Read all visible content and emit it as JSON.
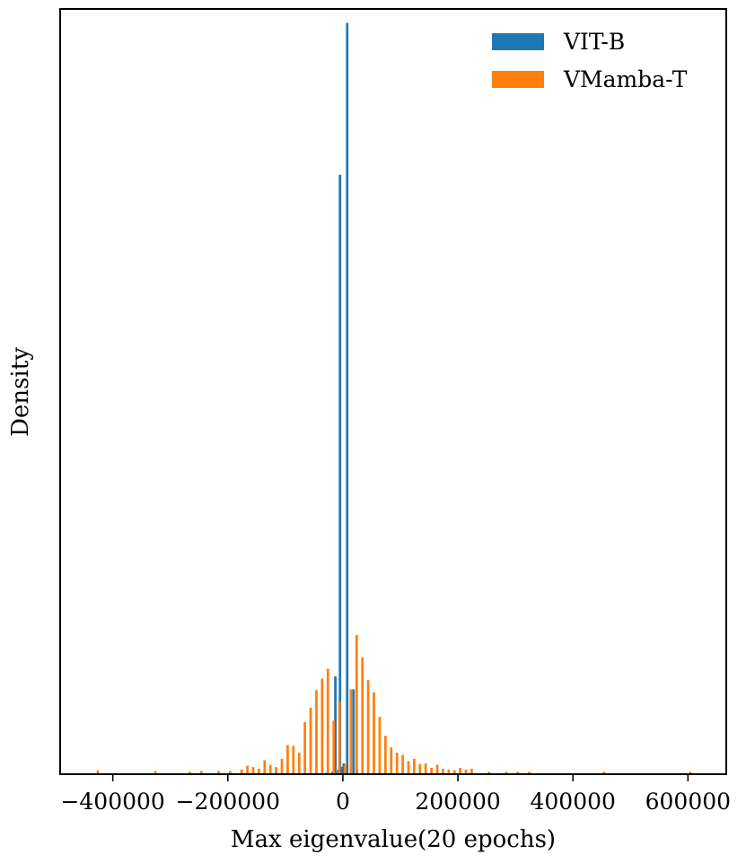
{
  "chart_data": {
    "type": "bar",
    "title": "",
    "xlabel": "Max eigenvalue(20 epochs)",
    "ylabel": "Density",
    "xlim": [
      -490000,
      665000
    ],
    "ylim": [
      0,
      1.0
    ],
    "x_ticks": [
      -400000,
      -200000,
      0,
      200000,
      400000,
      600000
    ],
    "x_tick_labels": [
      "−400000",
      "−200000",
      "0",
      "200000",
      "400000",
      "600000"
    ],
    "y_ticks_visible": false,
    "grid": false,
    "legend_position": "top-right",
    "bar_width": 4300,
    "series": [
      {
        "name": "VIT-B",
        "color": "#1f77b4",
        "bins": [
          {
            "x": -28000,
            "y": 0.001
          },
          {
            "x": -18000,
            "y": 0.002
          },
          {
            "x": -8000,
            "y": 0.0045
          },
          {
            "x": -1500,
            "y": 0.0085
          },
          {
            "x": 1500,
            "y": 0.013
          },
          {
            "x": -13000,
            "y": 0.127
          },
          {
            "x": -5000,
            "y": 0.784
          },
          {
            "x": 7500,
            "y": 0.983
          },
          {
            "x": 18500,
            "y": 0.11
          },
          {
            "x": 24500,
            "y": 0.005
          }
        ]
      },
      {
        "name": "VMamba-T",
        "color": "#ff7f0e",
        "bins": [
          {
            "x": -426000,
            "y": 0.004
          },
          {
            "x": -326000,
            "y": 0.003
          },
          {
            "x": -266000,
            "y": 0.002
          },
          {
            "x": -246000,
            "y": 0.003
          },
          {
            "x": -216000,
            "y": 0.003
          },
          {
            "x": -196000,
            "y": 0.003
          },
          {
            "x": -176000,
            "y": 0.005
          },
          {
            "x": -166000,
            "y": 0.01
          },
          {
            "x": -156000,
            "y": 0.008
          },
          {
            "x": -146000,
            "y": 0.006
          },
          {
            "x": -136000,
            "y": 0.017
          },
          {
            "x": -126000,
            "y": 0.011
          },
          {
            "x": -116000,
            "y": 0.008
          },
          {
            "x": -106000,
            "y": 0.019
          },
          {
            "x": -96000,
            "y": 0.037
          },
          {
            "x": -86000,
            "y": 0.036
          },
          {
            "x": -76000,
            "y": 0.027
          },
          {
            "x": -66000,
            "y": 0.067
          },
          {
            "x": -56000,
            "y": 0.086
          },
          {
            "x": -46000,
            "y": 0.109
          },
          {
            "x": -36000,
            "y": 0.124
          },
          {
            "x": -26000,
            "y": 0.137
          },
          {
            "x": -16000,
            "y": 0.069
          },
          {
            "x": -6000,
            "y": 0.094
          },
          {
            "x": 4000,
            "y": 0.011
          },
          {
            "x": 14000,
            "y": 0.11
          },
          {
            "x": 24000,
            "y": 0.181
          },
          {
            "x": 34000,
            "y": 0.152
          },
          {
            "x": 44000,
            "y": 0.122
          },
          {
            "x": 54000,
            "y": 0.106
          },
          {
            "x": 64000,
            "y": 0.074
          },
          {
            "x": 74000,
            "y": 0.049
          },
          {
            "x": 84000,
            "y": 0.034
          },
          {
            "x": 94000,
            "y": 0.027
          },
          {
            "x": 104000,
            "y": 0.024
          },
          {
            "x": 114000,
            "y": 0.016
          },
          {
            "x": 124000,
            "y": 0.019
          },
          {
            "x": 134000,
            "y": 0.012
          },
          {
            "x": 144000,
            "y": 0.013
          },
          {
            "x": 154000,
            "y": 0.007
          },
          {
            "x": 164000,
            "y": 0.011
          },
          {
            "x": 174000,
            "y": 0.006
          },
          {
            "x": 184000,
            "y": 0.005
          },
          {
            "x": 194000,
            "y": 0.004
          },
          {
            "x": 204000,
            "y": 0.007
          },
          {
            "x": 214000,
            "y": 0.005
          },
          {
            "x": 224000,
            "y": 0.006
          },
          {
            "x": 254000,
            "y": 0.002
          },
          {
            "x": 284000,
            "y": 0.002
          },
          {
            "x": 304000,
            "y": 0.002
          },
          {
            "x": 324000,
            "y": 0.002
          },
          {
            "x": 454000,
            "y": 0.002
          },
          {
            "x": 604000,
            "y": 0.002
          }
        ]
      }
    ]
  }
}
